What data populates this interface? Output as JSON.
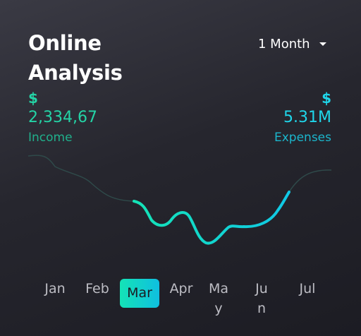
{
  "header": {
    "title": "Online Analysis"
  },
  "period_select": {
    "value": "1 Month"
  },
  "income": {
    "currency": "$",
    "value": "2,334,67",
    "label": "Income"
  },
  "expenses": {
    "currency": "$",
    "value": "5.31M",
    "label": "Expenses"
  },
  "months": [
    "Jan",
    "Feb",
    "Mar",
    "Apr",
    "May",
    "Jun",
    "Jul"
  ],
  "selected_month": "Mar",
  "colors": {
    "income": "#24d4a6",
    "expenses": "#1fd6ea",
    "accent_from": "#14e3b6",
    "accent_to": "#0fbfe0"
  },
  "icons": {
    "period_select": "caret-down-icon"
  }
}
